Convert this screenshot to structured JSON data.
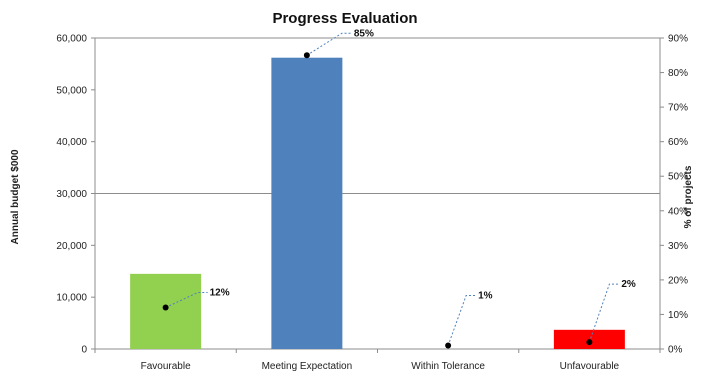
{
  "chart_data": {
    "type": "bar",
    "title": "Progress Evaluation",
    "categories": [
      "Favourable",
      "Meeting Expectation",
      "Within Tolerance",
      "Unfavourable"
    ],
    "series": [
      {
        "name": "Annual budget $000",
        "axis": "left",
        "values": [
          14500,
          56200,
          0,
          3700
        ],
        "colors": [
          "#92d050",
          "#4f81bd",
          "#4f81bd",
          "#ff0000"
        ]
      },
      {
        "name": "% of projects",
        "axis": "right",
        "type": "scatter",
        "values": [
          12,
          85,
          1,
          2
        ],
        "value_labels": [
          "12%",
          "85%",
          "1%",
          "2%"
        ],
        "marker_color": "#000000"
      }
    ],
    "ylabel": "Annual budget $000",
    "y2label": "% of projects",
    "ylim": [
      0,
      60000
    ],
    "y2lim": [
      0,
      90
    ],
    "yticks": [
      0,
      10000,
      20000,
      30000,
      40000,
      50000,
      60000
    ],
    "yticklabels": [
      "0",
      "10,000",
      "20,000",
      "30,000",
      "40,000",
      "50,000",
      "60,000"
    ],
    "y2ticks": [
      0,
      10,
      20,
      30,
      40,
      50,
      60,
      70,
      80,
      90
    ],
    "y2ticklabels": [
      "0%",
      "10%",
      "20%",
      "30%",
      "40%",
      "50%",
      "60%",
      "70%",
      "80%",
      "90%"
    ],
    "grid": "horizontal major only at 30,000 and 60,000",
    "legend": "none",
    "data_labels": "leader lines to percentage labels"
  }
}
